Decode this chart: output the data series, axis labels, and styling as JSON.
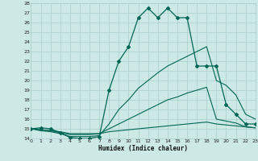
{
  "xlabel": "Humidex (Indice chaleur)",
  "bg_color": "#cce9e5",
  "grid_color": "#aacfca",
  "line_color": "#006655",
  "xlim": [
    0,
    23
  ],
  "ylim": [
    14,
    28
  ],
  "ytick_vals": [
    14,
    15,
    16,
    17,
    18,
    19,
    20,
    21,
    22,
    23,
    24,
    25,
    26,
    27,
    28
  ],
  "xtick_vals": [
    0,
    1,
    2,
    3,
    4,
    5,
    6,
    7,
    8,
    9,
    10,
    11,
    12,
    13,
    14,
    15,
    16,
    17,
    18,
    19,
    20,
    21,
    22,
    23
  ],
  "series": [
    {
      "x": [
        0,
        1,
        2,
        3,
        4,
        5,
        6,
        7,
        8,
        9,
        10,
        11,
        12,
        13,
        14,
        15,
        16,
        17,
        18,
        19,
        20,
        21,
        22,
        23
      ],
      "y": [
        15.0,
        15.1,
        15.0,
        14.6,
        14.1,
        14.0,
        14.0,
        14.2,
        19.0,
        22.0,
        23.5,
        26.5,
        27.5,
        26.5,
        27.5,
        26.5,
        26.5,
        21.5,
        21.5,
        21.5,
        17.5,
        16.5,
        15.5,
        15.5
      ],
      "marker": "D",
      "markersize": 2.0,
      "lw": 0.9
    },
    {
      "x": [
        0,
        1,
        2,
        3,
        4,
        5,
        6,
        7,
        8,
        9,
        10,
        11,
        12,
        13,
        14,
        15,
        16,
        17,
        18,
        19,
        20,
        21,
        22,
        23
      ],
      "y": [
        15.0,
        14.8,
        14.7,
        14.5,
        14.2,
        14.2,
        14.2,
        14.3,
        15.5,
        17.0,
        18.0,
        19.2,
        20.0,
        20.8,
        21.5,
        22.0,
        22.5,
        23.0,
        23.5,
        20.0,
        19.5,
        18.5,
        16.5,
        16.0
      ],
      "marker": null,
      "lw": 0.8
    },
    {
      "x": [
        0,
        1,
        2,
        3,
        4,
        5,
        6,
        7,
        8,
        9,
        10,
        11,
        12,
        13,
        14,
        15,
        16,
        17,
        18,
        19,
        20,
        21,
        22,
        23
      ],
      "y": [
        15.0,
        14.9,
        14.8,
        14.6,
        14.4,
        14.4,
        14.4,
        14.5,
        15.0,
        15.5,
        16.0,
        16.5,
        17.0,
        17.5,
        18.0,
        18.3,
        18.7,
        19.0,
        19.3,
        16.0,
        15.8,
        15.6,
        15.2,
        15.1
      ],
      "marker": null,
      "lw": 0.8
    },
    {
      "x": [
        0,
        1,
        2,
        3,
        4,
        5,
        6,
        7,
        8,
        9,
        10,
        11,
        12,
        13,
        14,
        15,
        16,
        17,
        18,
        19,
        20,
        21,
        22,
        23
      ],
      "y": [
        15.0,
        14.9,
        14.8,
        14.7,
        14.5,
        14.5,
        14.5,
        14.5,
        14.7,
        14.8,
        14.9,
        15.0,
        15.1,
        15.2,
        15.3,
        15.4,
        15.5,
        15.6,
        15.7,
        15.5,
        15.4,
        15.3,
        15.2,
        15.1
      ],
      "marker": null,
      "lw": 0.8
    }
  ]
}
